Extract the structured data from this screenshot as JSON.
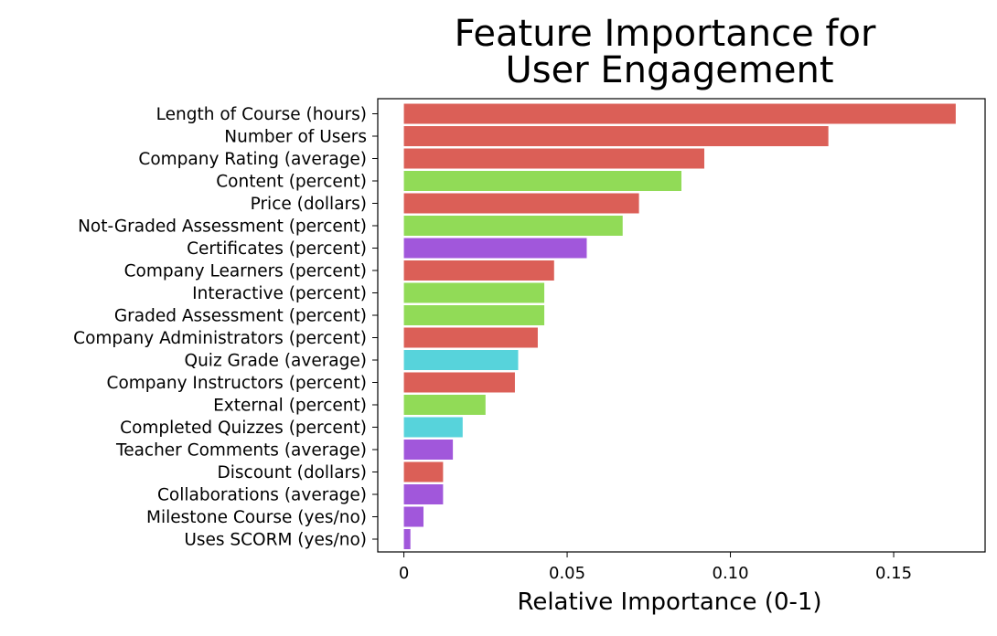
{
  "chart_data": {
    "type": "bar",
    "orientation": "horizontal",
    "title": [
      "Feature Importance for",
      "User Engagement"
    ],
    "xlabel": "Relative Importance (0-1)",
    "ylabel": "",
    "xlim": [
      -0.008,
      0.178
    ],
    "xticks": [
      0,
      0.05,
      0.1,
      0.15
    ],
    "xtick_labels": [
      "0",
      "0.05",
      "0.10",
      "0.15"
    ],
    "grid": false,
    "categories": [
      "Length of Course (hours)",
      "Number of Users",
      "Company Rating (average)",
      "Content (percent)",
      "Price (dollars)",
      "Not-Graded Assessment (percent)",
      "Certificates (percent)",
      "Company Learners (percent)",
      "Interactive (percent)",
      "Graded Assessment (percent)",
      "Company Administrators (percent)",
      "Quiz Grade (average)",
      "Company Instructors (percent)",
      "External (percent)",
      "Completed Quizzes (percent)",
      "Teacher Comments (average)",
      "Discount (dollars)",
      "Collaborations (average)",
      "Milestone Course (yes/no)",
      "Uses SCORM (yes/no)"
    ],
    "values": [
      0.169,
      0.13,
      0.092,
      0.085,
      0.072,
      0.067,
      0.056,
      0.046,
      0.043,
      0.043,
      0.041,
      0.035,
      0.034,
      0.025,
      0.018,
      0.015,
      0.012,
      0.012,
      0.006,
      0.002
    ],
    "bar_colors": [
      "#db5f57",
      "#db5f57",
      "#db5f57",
      "#91db57",
      "#db5f57",
      "#91db57",
      "#a157db",
      "#db5f57",
      "#91db57",
      "#91db57",
      "#db5f57",
      "#57d3db",
      "#db5f57",
      "#91db57",
      "#57d3db",
      "#a157db",
      "#db5f57",
      "#a157db",
      "#a157db",
      "#a157db"
    ]
  }
}
